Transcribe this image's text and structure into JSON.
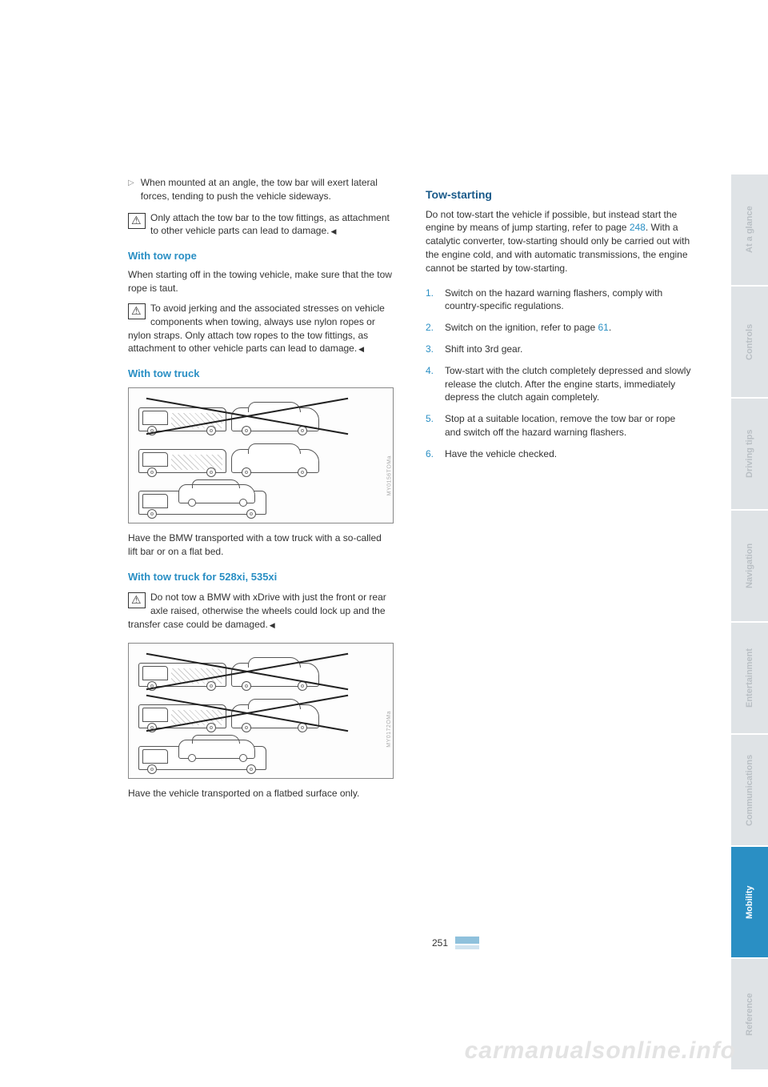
{
  "left": {
    "bullet": "When mounted at an angle, the tow bar will exert lateral forces, tending to push the vehicle sideways.",
    "warn1": "Only attach the tow bar to the tow fittings, as attachment to other vehicle parts can lead to damage.",
    "h_tow_rope": "With tow rope",
    "rope_p": "When starting off in the towing vehicle, make sure that the tow rope is taut.",
    "warn2": "To avoid jerking and the associated stresses on vehicle components when towing, always use nylon ropes or nylon straps. Only attach tow ropes to the tow fittings, as attachment to other vehicle parts can lead to damage.",
    "h_tow_truck": "With tow truck",
    "fig1_credit": "MY0156TOMa",
    "truck_p": "Have the BMW transported with a tow truck with a so-called lift bar or on a flat bed.",
    "h_tow_truck_x": "With tow truck for 528xi, 535xi",
    "warn3": "Do not tow a BMW with xDrive with just the front or rear axle raised, otherwise the wheels could lock up and the transfer case could be damaged.",
    "fig2_credit": "MY0172OMa",
    "flatbed_p": "Have the vehicle transported on a flatbed surface only."
  },
  "right": {
    "h_tow_start": "Tow-starting",
    "intro1": "Do not tow-start the vehicle if possible, but instead start the engine by means of jump starting, refer to page ",
    "intro_link1": "248",
    "intro2": ". With a catalytic converter, tow-starting should only be carried out with the engine cold, and with automatic transmissions, the engine cannot be started by tow-starting.",
    "steps": [
      "Switch on the hazard warning flashers, comply with country-specific regulations.",
      "Switch on the ignition, refer to page ",
      "Shift into 3rd gear.",
      "Tow-start with the clutch completely depressed and slowly release the clutch. After the engine starts, immediately depress the clutch again completely.",
      "Stop at a suitable location, remove the tow bar or rope and switch off the hazard warning flashers.",
      "Have the vehicle checked."
    ],
    "step2_link": "61",
    "step2_suffix": "."
  },
  "tabs": [
    "At a glance",
    "Controls",
    "Driving tips",
    "Navigation",
    "Entertainment",
    "Communications",
    "Mobility",
    "Reference"
  ],
  "active_tab_index": 6,
  "page_number": "251",
  "watermark": "carmanualsonline.info"
}
